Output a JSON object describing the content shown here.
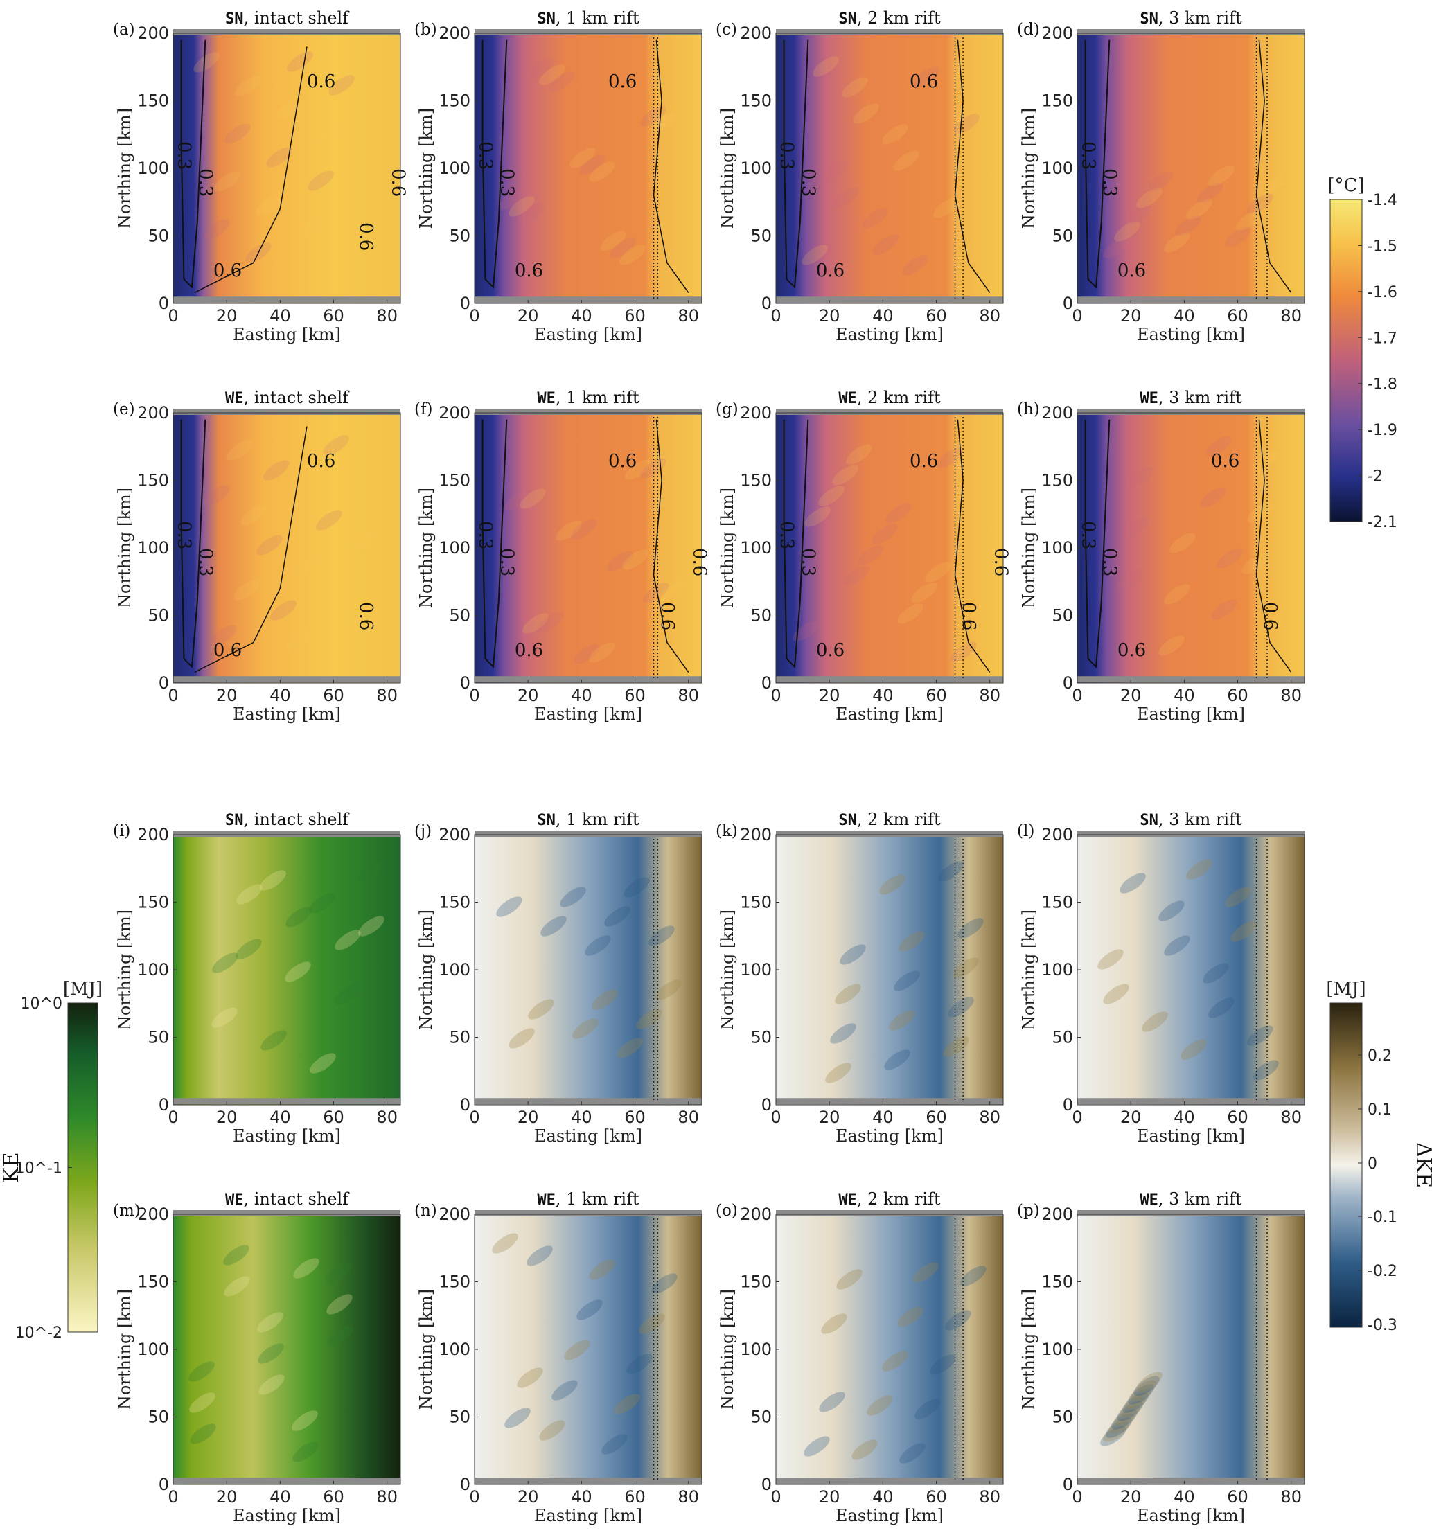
{
  "chart_data": [
    {
      "panel": "(a)",
      "type": "heatmap",
      "field": "temperature",
      "title_mono": "SN",
      "title": ", intact shelf",
      "xlabel": "Easting [km]",
      "ylabel": "Northing [km]",
      "xlim": [
        0,
        85
      ],
      "ylim": [
        0,
        200
      ],
      "xticks": [
        0,
        20,
        40,
        60,
        80
      ],
      "yticks": [
        0,
        50,
        100,
        150,
        200
      ],
      "contours": [
        "0.3",
        "0.3",
        "0.6",
        "0.6",
        "0.6",
        "0.6"
      ],
      "rift": false
    },
    {
      "panel": "(b)",
      "type": "heatmap",
      "field": "temperature",
      "title_mono": "SN",
      "title": ", 1 km rift",
      "xlabel": "Easting [km]",
      "ylabel": "Northing [km]",
      "xlim": [
        0,
        85
      ],
      "ylim": [
        0,
        200
      ],
      "xticks": [
        0,
        20,
        40,
        60,
        80
      ],
      "yticks": [
        0,
        50,
        100,
        150,
        200
      ],
      "contours": [
        "0.3",
        "0.3",
        "0.6",
        "0.6"
      ],
      "rift": true
    },
    {
      "panel": "(c)",
      "type": "heatmap",
      "field": "temperature",
      "title_mono": "SN",
      "title": ", 2 km rift",
      "xlabel": "Easting [km]",
      "ylabel": "Northing [km]",
      "xlim": [
        0,
        85
      ],
      "ylim": [
        0,
        200
      ],
      "xticks": [
        0,
        20,
        40,
        60,
        80
      ],
      "yticks": [
        0,
        50,
        100,
        150,
        200
      ],
      "contours": [
        "0.3",
        "0.3",
        "0.6",
        "0.6"
      ],
      "rift": true
    },
    {
      "panel": "(d)",
      "type": "heatmap",
      "field": "temperature",
      "title_mono": "SN",
      "title": ", 3 km rift",
      "xlabel": "Easting [km]",
      "ylabel": "Northing [km]",
      "xlim": [
        0,
        85
      ],
      "ylim": [
        0,
        200
      ],
      "xticks": [
        0,
        20,
        40,
        60,
        80
      ],
      "yticks": [
        0,
        50,
        100,
        150,
        200
      ],
      "contours": [
        "0.3",
        "0.3",
        "0.6"
      ],
      "rift": true
    },
    {
      "panel": "(e)",
      "type": "heatmap",
      "field": "temperature",
      "title_mono": "WE",
      "title": ", intact shelf",
      "xlabel": "Easting [km]",
      "ylabel": "Northing [km]",
      "xlim": [
        0,
        85
      ],
      "ylim": [
        0,
        200
      ],
      "xticks": [
        0,
        20,
        40,
        60,
        80
      ],
      "yticks": [
        0,
        50,
        100,
        150,
        200
      ],
      "contours": [
        "0.3",
        "0.3",
        "0.6",
        "0.6",
        "0.6"
      ],
      "rift": false
    },
    {
      "panel": "(f)",
      "type": "heatmap",
      "field": "temperature",
      "title_mono": "WE",
      "title": ", 1 km rift",
      "xlabel": "Easting [km]",
      "ylabel": "Northing [km]",
      "xlim": [
        0,
        85
      ],
      "ylim": [
        0,
        200
      ],
      "xticks": [
        0,
        20,
        40,
        60,
        80
      ],
      "yticks": [
        0,
        50,
        100,
        150,
        200
      ],
      "contours": [
        "0.3",
        "0.3",
        "0.6",
        "0.6",
        "0.6",
        "0.6"
      ],
      "rift": true
    },
    {
      "panel": "(g)",
      "type": "heatmap",
      "field": "temperature",
      "title_mono": "WE",
      "title": ", 2 km rift",
      "xlabel": "Easting [km]",
      "ylabel": "Northing [km]",
      "xlim": [
        0,
        85
      ],
      "ylim": [
        0,
        200
      ],
      "xticks": [
        0,
        20,
        40,
        60,
        80
      ],
      "yticks": [
        0,
        50,
        100,
        150,
        200
      ],
      "contours": [
        "0.3",
        "0.3",
        "0.6",
        "0.6",
        "0.6",
        "0.6"
      ],
      "rift": true
    },
    {
      "panel": "(h)",
      "type": "heatmap",
      "field": "temperature",
      "title_mono": "WE",
      "title": ", 3 km rift",
      "xlabel": "Easting [km]",
      "ylabel": "Northing [km]",
      "xlim": [
        0,
        85
      ],
      "ylim": [
        0,
        200
      ],
      "xticks": [
        0,
        20,
        40,
        60,
        80
      ],
      "yticks": [
        0,
        50,
        100,
        150,
        200
      ],
      "contours": [
        "0.3",
        "0.3",
        "0.6",
        "0.6",
        "0.6"
      ],
      "rift": true
    },
    {
      "panel": "(i)",
      "type": "heatmap",
      "field": "KE",
      "title_mono": "SN",
      "title": ", intact shelf",
      "xlabel": "Easting [km]",
      "ylabel": "Northing [km]",
      "xlim": [
        0,
        85
      ],
      "ylim": [
        0,
        200
      ],
      "xticks": [
        0,
        20,
        40,
        60,
        80
      ],
      "yticks": [
        0,
        50,
        100,
        150,
        200
      ],
      "contours": [],
      "rift": false
    },
    {
      "panel": "(j)",
      "type": "heatmap",
      "field": "dKE",
      "title_mono": "SN",
      "title": ", 1 km rift",
      "xlabel": "Easting [km]",
      "ylabel": "Northing [km]",
      "xlim": [
        0,
        85
      ],
      "ylim": [
        0,
        200
      ],
      "xticks": [
        0,
        20,
        40,
        60,
        80
      ],
      "yticks": [
        0,
        50,
        100,
        150,
        200
      ],
      "contours": [],
      "rift": true
    },
    {
      "panel": "(k)",
      "type": "heatmap",
      "field": "dKE",
      "title_mono": "SN",
      "title": ", 2 km rift",
      "xlabel": "Easting [km]",
      "ylabel": "Northing [km]",
      "xlim": [
        0,
        85
      ],
      "ylim": [
        0,
        200
      ],
      "xticks": [
        0,
        20,
        40,
        60,
        80
      ],
      "yticks": [
        0,
        50,
        100,
        150,
        200
      ],
      "contours": [],
      "rift": true
    },
    {
      "panel": "(l)",
      "type": "heatmap",
      "field": "dKE",
      "title_mono": "SN",
      "title": ", 3 km rift",
      "xlabel": "Easting [km]",
      "ylabel": "Northing [km]",
      "xlim": [
        0,
        85
      ],
      "ylim": [
        0,
        200
      ],
      "xticks": [
        0,
        20,
        40,
        60,
        80
      ],
      "yticks": [
        0,
        50,
        100,
        150,
        200
      ],
      "contours": [],
      "rift": true
    },
    {
      "panel": "(m)",
      "type": "heatmap",
      "field": "KE",
      "title_mono": "WE",
      "title": ", intact shelf",
      "xlabel": "Easting [km]",
      "ylabel": "Northing [km]",
      "xlim": [
        0,
        85
      ],
      "ylim": [
        0,
        200
      ],
      "xticks": [
        0,
        20,
        40,
        60,
        80
      ],
      "yticks": [
        0,
        50,
        100,
        150,
        200
      ],
      "contours": [],
      "rift": false
    },
    {
      "panel": "(n)",
      "type": "heatmap",
      "field": "dKE",
      "title_mono": "WE",
      "title": ", 1 km rift",
      "xlabel": "Easting [km]",
      "ylabel": "Northing [km]",
      "xlim": [
        0,
        85
      ],
      "ylim": [
        0,
        200
      ],
      "xticks": [
        0,
        20,
        40,
        60,
        80
      ],
      "yticks": [
        0,
        50,
        100,
        150,
        200
      ],
      "contours": [],
      "rift": true
    },
    {
      "panel": "(o)",
      "type": "heatmap",
      "field": "dKE",
      "title_mono": "WE",
      "title": ", 2 km rift",
      "xlabel": "Easting [km]",
      "ylabel": "Northing [km]",
      "xlim": [
        0,
        85
      ],
      "ylim": [
        0,
        200
      ],
      "xticks": [
        0,
        20,
        40,
        60,
        80
      ],
      "yticks": [
        0,
        50,
        100,
        150,
        200
      ],
      "contours": [],
      "rift": true
    },
    {
      "panel": "(p)",
      "type": "heatmap",
      "field": "dKE",
      "title_mono": "WE",
      "title": ", 3 km rift",
      "xlabel": "Easting [km]",
      "ylabel": "Northing [km]",
      "xlim": [
        0,
        85
      ],
      "ylim": [
        0,
        200
      ],
      "xticks": [
        0,
        20,
        40,
        60,
        80
      ],
      "yticks": [
        0,
        50,
        100,
        150,
        200
      ],
      "contours": [],
      "rift": true
    }
  ],
  "colorbars": {
    "temperature": {
      "unit": "[°C]",
      "ticks": [
        "-1.4",
        "-1.5",
        "-1.6",
        "-1.7",
        "-1.8",
        "-1.9",
        "-2",
        "-2.1"
      ],
      "range": [
        -2.1,
        -1.4
      ],
      "colors": [
        "#0a1330",
        "#27318a",
        "#6a4fa0",
        "#c0607a",
        "#ee8a3c",
        "#f7c04a",
        "#f5e874"
      ]
    },
    "ke": {
      "unit": "[MJ]",
      "label": "KE",
      "ticks": [
        "10^0",
        "10^-1",
        "10^-2"
      ],
      "range": [
        0.01,
        1
      ],
      "scale": "log",
      "colors": [
        "#14220e",
        "#155c2a",
        "#2f8a2a",
        "#7fa81c",
        "#c9c86a",
        "#fbf5c4"
      ]
    },
    "dke": {
      "unit": "[MJ]",
      "label": "ΔKE",
      "ticks": [
        "0.2",
        "0.1",
        "0",
        "-0.1",
        "-0.2",
        "-0.3"
      ],
      "range": [
        -0.3,
        0.3
      ],
      "colors": [
        "#0b2440",
        "#2f5d88",
        "#9fb4c8",
        "#f5f2ea",
        "#c9b896",
        "#8c7440",
        "#2b2310"
      ]
    }
  }
}
